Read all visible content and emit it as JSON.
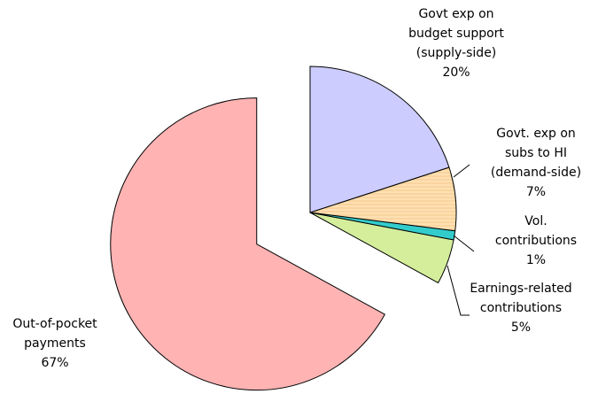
{
  "chart_data": {
    "type": "pie",
    "categories": [
      [
        "Govt exp on",
        "budget support",
        "(supply-side)"
      ],
      [
        "Govt. exp on",
        "subs to HI",
        "(demand-side)"
      ],
      [
        "Vol.",
        "contributions"
      ],
      [
        "Earnings-related",
        "contributions"
      ],
      [
        "Out-of-pocket",
        "payments"
      ]
    ],
    "values": [
      20,
      7,
      1,
      5,
      67
    ],
    "value_labels": [
      "20%",
      "7%",
      "1%",
      "5%",
      "67%"
    ],
    "colors": [
      "#ccccff",
      "#ffe0b3",
      "#33cccc",
      "#d4ee9c",
      "#ffb3b3"
    ]
  }
}
